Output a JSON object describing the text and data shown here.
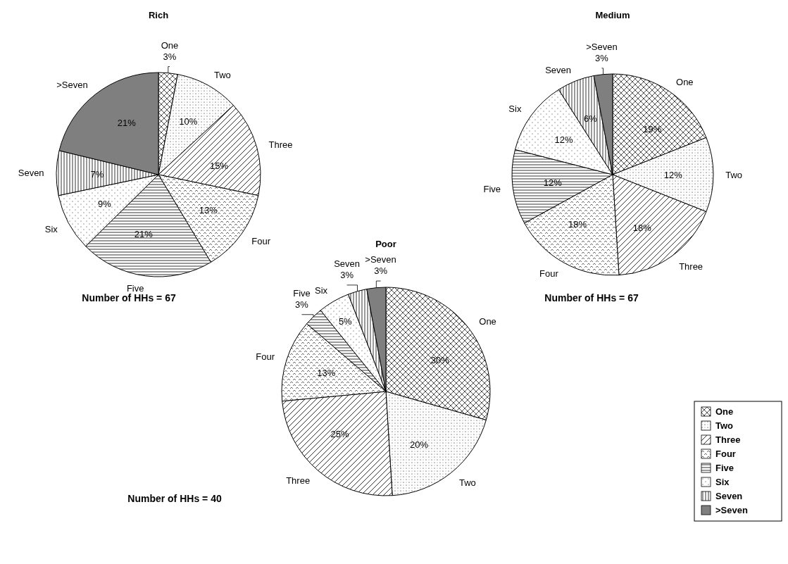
{
  "chart_data": [
    {
      "type": "pie",
      "title": "Rich",
      "categories": [
        "One",
        "Two",
        "Three",
        "Four",
        "Five",
        "Six",
        "Seven",
        ">Seven"
      ],
      "values": [
        3,
        10,
        15,
        13,
        21,
        9,
        7,
        21
      ],
      "value_labels": [
        "3%",
        "10%",
        "15%",
        "13%",
        "21%",
        "9%",
        "7%",
        "21%"
      ],
      "colors": [
        "#000000",
        "#000000",
        "#000000",
        "#000000",
        "#000000",
        "#000000",
        "#000000",
        "#000000"
      ],
      "annotations": [
        "Number of HHs = 67"
      ],
      "legend": false
    },
    {
      "type": "pie",
      "title": "Medium",
      "categories": [
        "One",
        "Two",
        "Three",
        "Four",
        "Five",
        "Six",
        "Seven",
        ">Seven"
      ],
      "values": [
        19,
        12,
        18,
        18,
        12,
        12,
        6,
        3
      ],
      "value_labels": [
        "19%",
        "12%",
        "18%",
        "18%",
        "12%",
        "12%",
        "6%",
        "3%"
      ],
      "colors": [
        "#000000",
        "#000000",
        "#000000",
        "#000000",
        "#000000",
        "#000000",
        "#000000",
        "#000000"
      ],
      "annotations": [
        "Number of HHs = 67"
      ],
      "legend": false
    },
    {
      "type": "pie",
      "title": "Poor",
      "categories": [
        "One",
        "Two",
        "Three",
        "Four",
        "Five",
        "Six",
        "Seven",
        ">Seven"
      ],
      "values": [
        30,
        20,
        25,
        13,
        3,
        5,
        3,
        3
      ],
      "value_labels": [
        "30%",
        "20%",
        "25%",
        "13%",
        "3%",
        "5%",
        "3%",
        "3%"
      ],
      "colors": [
        "#000000",
        "#000000",
        "#000000",
        "#000000",
        "#000000",
        "#000000",
        "#000000",
        "#000000"
      ],
      "annotations": [
        "Number of HHs = 40"
      ],
      "legend": "right"
    }
  ]
}
